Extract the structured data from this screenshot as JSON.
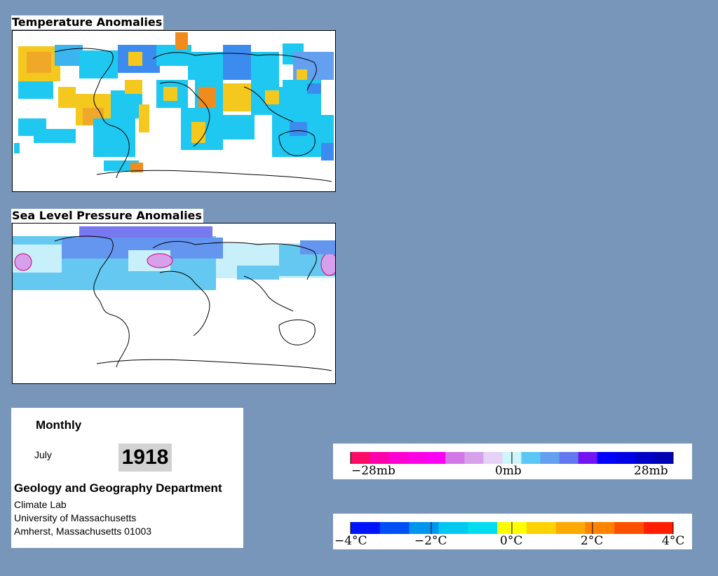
{
  "maps": {
    "temperature": {
      "title": "Temperature Anomalies"
    },
    "pressure": {
      "title": "Sea Level Pressure Anomalies"
    }
  },
  "info": {
    "frequency": "Monthly",
    "month": "July",
    "year": "1918",
    "department": "Geology and Geography Department",
    "lab": "Climate Lab",
    "university": "University of Massachusetts",
    "address": "Amherst, Massachusetts 01003"
  },
  "pressure_legend": {
    "labels": [
      "−28mb",
      "0mb",
      "28mb"
    ],
    "colors": [
      "#ff0a64",
      "#ff00aa",
      "#ff00d2",
      "#ff00e6",
      "#ff00f5",
      "#d278e6",
      "#d7a0eb",
      "#e6d2f5",
      "#ccf6fa",
      "#5ac8f5",
      "#64a0f0",
      "#6478f0",
      "#7314f5",
      "#0000ff",
      "#0000e6",
      "#0000c8",
      "#0000b4"
    ]
  },
  "temperature_legend": {
    "labels": [
      "−4°C",
      "−2°C",
      "0°C",
      "2°C",
      "4°C"
    ],
    "colors": [
      "#0014ff",
      "#0050f5",
      "#0096f0",
      "#00c8f0",
      "#00dcf0",
      "#ffff00",
      "#ffd200",
      "#ffaa00",
      "#ff8200",
      "#ff5000",
      "#ff1e00"
    ]
  },
  "colors": {
    "background": "#7896b9",
    "temp_warm": "#f5c81e",
    "temp_orange": "#f08c1e",
    "temp_cool": "#1ec8f0",
    "temp_blue": "#3c8cf0",
    "slp_pale": "#c8f0fa",
    "slp_light": "#64c8f0",
    "slp_mid": "#6496f0",
    "slp_dark": "#7878f0"
  }
}
